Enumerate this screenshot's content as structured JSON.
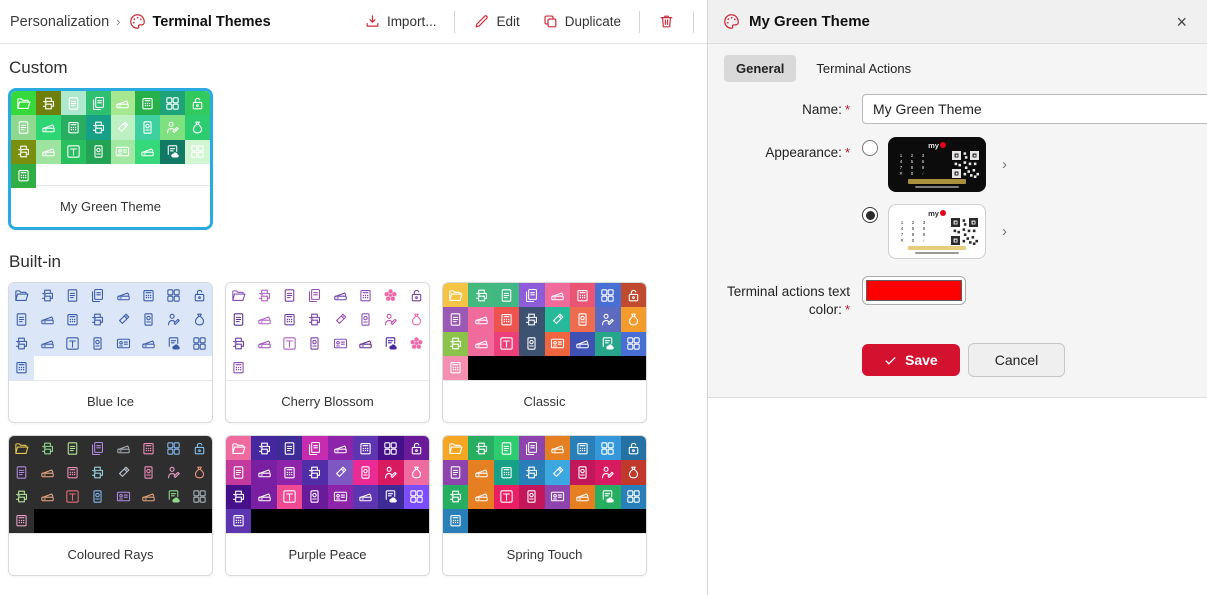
{
  "breadcrumb": {
    "parent": "Personalization",
    "separator": "›",
    "current": "Terminal Themes"
  },
  "toolbar": {
    "import_label": "Import...",
    "edit_label": "Edit",
    "duplicate_label": "Duplicate"
  },
  "colors": {
    "accent": "#d2122e",
    "selection_blue": "#29abe2",
    "swatch_red": "#fe0000"
  },
  "icon_sequence": [
    "folder",
    "printer",
    "doc",
    "docs",
    "scanner",
    "fax",
    "grid",
    "lock",
    "doc",
    "scanner",
    "fax",
    "printer",
    "usb",
    "badge",
    "person",
    "bag",
    "printer",
    "scanner",
    "atm",
    "badge",
    "idcard",
    "scanner",
    "doccloud",
    "grid",
    "fax"
  ],
  "sections": [
    {
      "title": "Custom",
      "items": [
        {
          "label": "My Green Theme",
          "selected": true,
          "tail": "none",
          "icon_color": "#ffffff",
          "tile_bgs": [
            "#35d93c",
            "#6f7f0b",
            "#aee8cd",
            "#2fbf71",
            "#a5e88f",
            "#25b04a",
            "#1fa37a",
            "#32c95e",
            "#8fd98f",
            "#2ed573",
            "#27ae60",
            "#16a085",
            "#bdf0c2",
            "#3fd0a0",
            "#7fe07f",
            "#2ecc71",
            "#7a8f0e",
            "#9fe3a0",
            "#2abf5e",
            "#23a455",
            "#a2e8a2",
            "#35d97a",
            "#117a65",
            "#d2f5d2",
            "#2fae44"
          ]
        }
      ]
    },
    {
      "title": "Built-in",
      "items": [
        {
          "label": "Blue Ice",
          "selected": false,
          "tail": "none",
          "icon_color": "#3b5ca8",
          "tile_bg_all": "#dbe6f8"
        },
        {
          "label": "Cherry Blossom",
          "selected": false,
          "tail": "none",
          "tile_bg_all": "#ffffff",
          "icon_overrides": {
            "6": "flower",
            "23": "flower"
          },
          "icon_colors": [
            "#8a4db8",
            "#b05fc2",
            "#7b3fa8",
            "#9a4fb0",
            "#6d3fa8",
            "#8a4db8",
            "#ef6aa8",
            "#7b3fa8",
            "#5c2d91",
            "#b05fc2",
            "#6d3fa8",
            "#7b3fa8",
            "#9a4fb0",
            "#8a4db8",
            "#c44fb0",
            "#ef6aa8",
            "#6d3fa8",
            "#9a4fb0",
            "#b05fc2",
            "#7b3fa8",
            "#8a4db8",
            "#5c2d91",
            "#4527a0",
            "#ef6aa8",
            "#8a4db8"
          ]
        },
        {
          "label": "Classic",
          "selected": false,
          "tail": "#000000",
          "icon_color": "#ffffff",
          "tile_bgs": [
            "#f6c445",
            "#43b97f",
            "#41b883",
            "#8e5bd9",
            "#f06a9b",
            "#ea5576",
            "#4a6fd4",
            "#bf4a2f",
            "#9b59b6",
            "#f06a9b",
            "#ef5350",
            "#3d5170",
            "#26b99a",
            "#ef6c4f",
            "#5c6bc0",
            "#f39c2d",
            "#8bc34a",
            "#f06a9b",
            "#ec407a",
            "#3d5170",
            "#f0653f",
            "#3f51b5",
            "#26a58b",
            "#4a6fd4",
            "#f48fb1"
          ]
        },
        {
          "label": "Coloured Rays",
          "selected": false,
          "tail": "#000000",
          "tile_bg_all": "#2e2e2e",
          "icon_colors": [
            "#e3c84f",
            "#8fd98f",
            "#b8e89a",
            "#b08ae0",
            "#a8b0b8",
            "#ef8fb8",
            "#85b8f0",
            "#85c0f0",
            "#b08ae0",
            "#e8a87f",
            "#ef8fb8",
            "#9ad0e0",
            "#c0c8d0",
            "#ef8fb8",
            "#e8a0c8",
            "#ef957f",
            "#b8e89a",
            "#e8a87f",
            "#e06c75",
            "#85b8f0",
            "#b08ae0",
            "#e8a87f",
            "#8fd98f",
            "#a8b0b8",
            "#e8a0c8"
          ]
        },
        {
          "label": "Purple Peace",
          "selected": false,
          "tail": "#000000",
          "icon_color": "#ffffff",
          "tile_bgs": [
            "#ef6a9e",
            "#4527a0",
            "#3f2b96",
            "#c72bb0",
            "#8e24aa",
            "#5e35b1",
            "#45108a",
            "#6a1b9a",
            "#c23a9e",
            "#7b1fa2",
            "#8e24aa",
            "#512da8",
            "#7e57c2",
            "#ec2a93",
            "#d81b60",
            "#ef6a9e",
            "#45108a",
            "#7b1fa2",
            "#ef4a93",
            "#6a1b9a",
            "#8e24aa",
            "#5e35b1",
            "#3f2b96",
            "#7c4dff",
            "#5e35b1"
          ]
        },
        {
          "label": "Spring Touch",
          "selected": false,
          "tail": "#000000",
          "icon_color": "#ffffff",
          "tile_bgs": [
            "#f5a623",
            "#27ae60",
            "#2ecc71",
            "#8e44ad",
            "#e67e22",
            "#2980b9",
            "#3498db",
            "#2471a3",
            "#8e44ad",
            "#e67e22",
            "#16a085",
            "#2980b9",
            "#3da8e0",
            "#c2185b",
            "#d81b60",
            "#c0392b",
            "#27ae60",
            "#e67e22",
            "#e91e63",
            "#c2185b",
            "#8e44ad",
            "#e67e22",
            "#27ae60",
            "#2980b9",
            "#2980b9"
          ]
        }
      ]
    }
  ],
  "panel": {
    "title": "My Green Theme",
    "close_label": "×",
    "tabs": [
      {
        "label": "General",
        "active": true
      },
      {
        "label": "Terminal Actions",
        "active": false
      }
    ],
    "form": {
      "required_marker": "*",
      "name_label": "Name:",
      "name_value": "My Green Theme",
      "appearance_label": "Appearance:",
      "color_label_line1": "Terminal actions text",
      "color_label_line2": "color:",
      "appearance_options": [
        {
          "id": "dark",
          "selected": false
        },
        {
          "id": "light",
          "selected": true
        }
      ],
      "preview": {
        "logo_text": "my",
        "keypad": [
          [
            "1",
            "2",
            "3"
          ],
          [
            "4",
            "5",
            "6"
          ],
          [
            "7",
            "8",
            "9"
          ],
          [
            "✕",
            "0",
            "✓"
          ]
        ],
        "next_chevron": "›"
      }
    },
    "buttons": {
      "save": "Save",
      "cancel": "Cancel"
    }
  }
}
